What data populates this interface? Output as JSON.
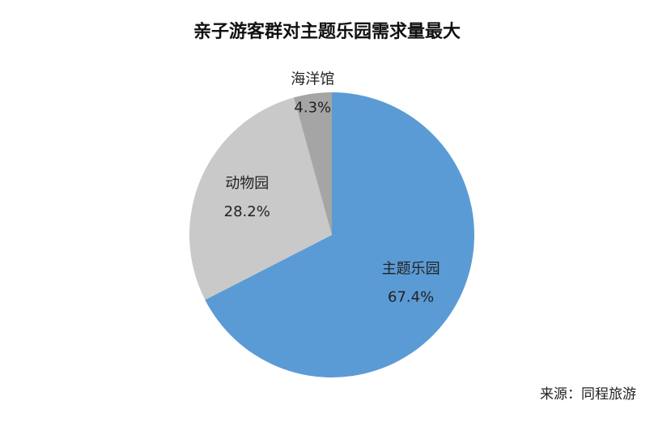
{
  "chart_data": {
    "type": "pie",
    "title": "亲子游客群对主题乐园需求量最大",
    "categories": [
      "主题乐园",
      "动物园",
      "海洋馆"
    ],
    "values": [
      67.4,
      28.2,
      4.3
    ],
    "value_labels": [
      "67.4%",
      "28.2%",
      "4.3%"
    ],
    "colors": [
      "#5b9bd5",
      "#c9c9c9",
      "#a5a5a5"
    ],
    "source": "来源：同程旅游"
  }
}
